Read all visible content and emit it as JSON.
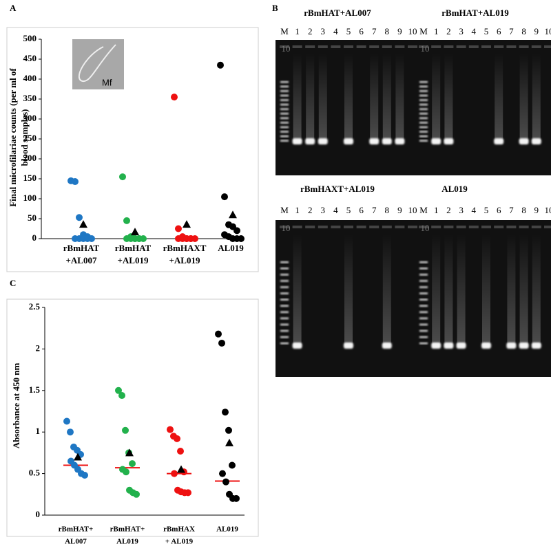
{
  "panels": [
    "A",
    "B",
    "C"
  ],
  "chart_data": [
    {
      "type": "scatter",
      "ylabel": [
        "Final microfilariae counts (per ml of",
        "blood samples)"
      ],
      "categories": [
        [
          "rBmHAT",
          "+AL007"
        ],
        [
          "rBmHAT",
          "+AL019"
        ],
        [
          "rBmHAXT",
          "+AL019"
        ],
        [
          "AL019"
        ]
      ],
      "series": [
        {
          "color": "#1f77c4",
          "values": [
            145,
            143,
            53,
            10,
            5,
            0,
            0,
            0,
            0,
            0
          ],
          "mean": 36
        },
        {
          "color": "#22b14c",
          "values": [
            155,
            45,
            5,
            0,
            0,
            0,
            0,
            0,
            0,
            0
          ],
          "mean": 17
        },
        {
          "color": "#ee1111",
          "values": [
            355,
            25,
            5,
            0,
            0,
            0,
            0,
            0,
            0,
            0
          ],
          "mean": 36
        },
        {
          "color": "#000000",
          "values": [
            435,
            105,
            35,
            30,
            20,
            10,
            5,
            0,
            0,
            0
          ],
          "mean": 60
        }
      ],
      "ylim": [
        0,
        500
      ],
      "yticks": [
        0,
        50,
        100,
        150,
        200,
        250,
        300,
        350,
        400,
        450,
        500
      ],
      "inset_label": "Mf"
    },
    {
      "type": "scatter",
      "ylabel": [
        "Absorbance at 450 nm"
      ],
      "categories": [
        [
          "rBmHAT+",
          "AL007"
        ],
        [
          "rBmHAT+",
          "AL019"
        ],
        [
          "rBmHAX",
          "+ AL019"
        ],
        [
          "AL019"
        ]
      ],
      "series": [
        {
          "color": "#1f77c4",
          "values": [
            1.13,
            1.0,
            0.82,
            0.78,
            0.73,
            0.65,
            0.6,
            0.55,
            0.5,
            0.48
          ],
          "mean": 0.7,
          "median": 0.6
        },
        {
          "color": "#22b14c",
          "values": [
            1.5,
            1.44,
            1.02,
            0.75,
            0.62,
            0.55,
            0.52,
            0.3,
            0.27,
            0.25
          ],
          "mean": 0.75,
          "median": 0.57
        },
        {
          "color": "#ee1111",
          "values": [
            1.03,
            0.95,
            0.92,
            0.77,
            0.52,
            0.5,
            0.3,
            0.28,
            0.27,
            0.27
          ],
          "mean": 0.55,
          "median": 0.5
        },
        {
          "color": "#000000",
          "values": [
            2.18,
            2.07,
            1.24,
            1.02,
            0.6,
            0.5,
            0.4,
            0.25,
            0.2,
            0.2
          ],
          "mean": 0.87,
          "median": 0.41
        }
      ],
      "ylim": [
        0,
        2.5
      ],
      "yticks": [
        0,
        0.5,
        1,
        1.5,
        2,
        2.5
      ]
    }
  ],
  "gels": [
    {
      "titles": [
        "rBmHAT+AL007",
        "rBmHAT+AL019"
      ],
      "lanes": [
        "M",
        "1",
        "2",
        "3",
        "4",
        "5",
        "6",
        "7",
        "8",
        "9",
        "10",
        "M",
        "1",
        "2",
        "3",
        "4",
        "5",
        "6",
        "7",
        "8",
        "9",
        "10"
      ],
      "marker": "10"
    },
    {
      "titles": [
        "rBmHAXT+AL019",
        "AL019"
      ],
      "lanes": [
        "M",
        "1",
        "2",
        "3",
        "4",
        "5",
        "6",
        "7",
        "8",
        "9",
        "10",
        "M",
        "1",
        "2",
        "3",
        "4",
        "5",
        "6",
        "7",
        "8",
        "9",
        "10"
      ],
      "marker": "10"
    }
  ]
}
